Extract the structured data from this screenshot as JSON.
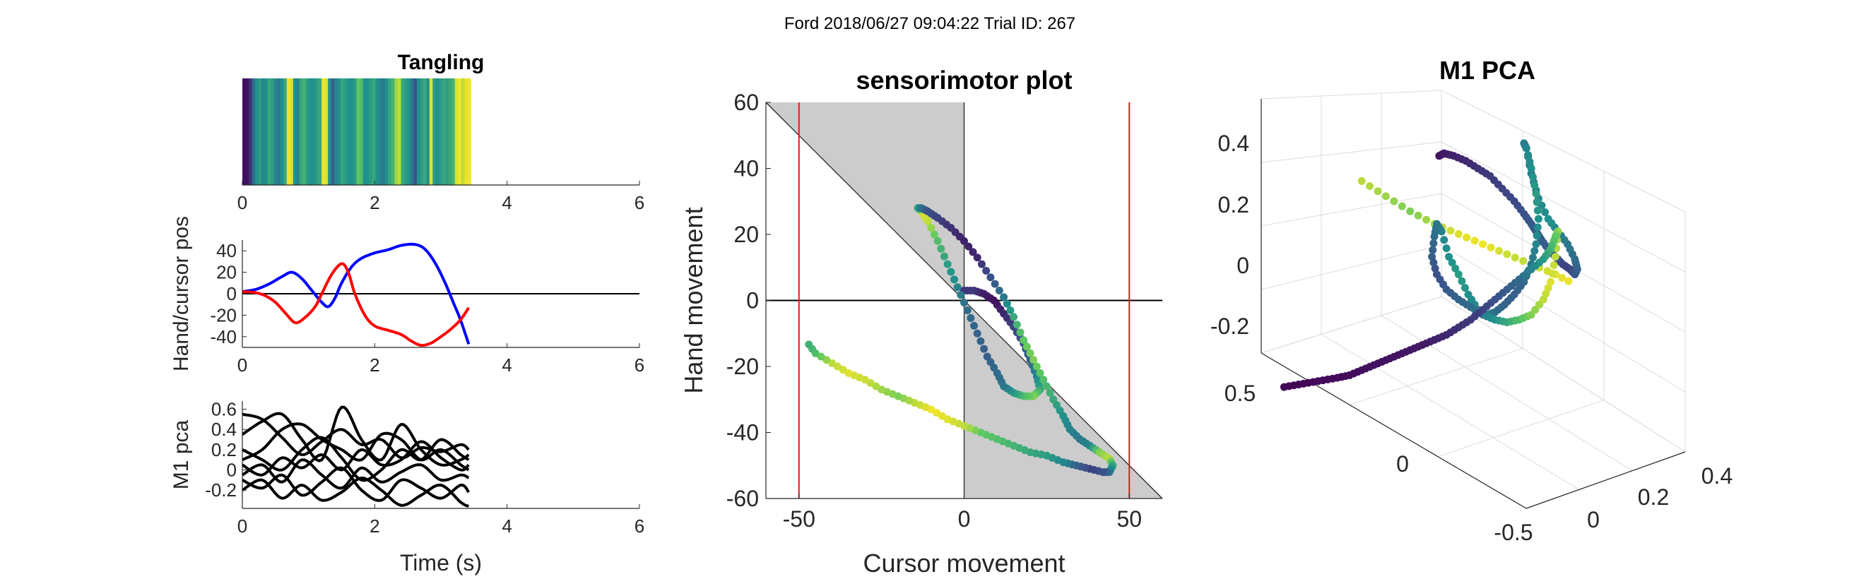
{
  "figure": {
    "suptitle": "Ford 2018/06/27 09:04:22 Trial ID: 267"
  },
  "colors": {
    "hand": "#0000ff",
    "cursor": "#ff0000",
    "pca": "#000000",
    "shade": "#cccccc",
    "boundary": "#e31a1c",
    "viridis": [
      "#440154",
      "#3b528b",
      "#21918c",
      "#5ec962",
      "#fde725"
    ]
  },
  "chart_data": [
    {
      "id": "tangling",
      "type": "heatmap",
      "title": "Tangling",
      "xlim": [
        0,
        6
      ],
      "xticks": [
        0,
        2,
        4,
        6
      ],
      "data_extent": [
        0,
        3.45
      ],
      "colormap": "viridis",
      "values": [
        0.05,
        0.05,
        0.15,
        0.35,
        0.5,
        0.55,
        0.45,
        0.5,
        0.6,
        0.55,
        0.45,
        0.4,
        0.5,
        0.6,
        0.98,
        0.95,
        0.5,
        0.45,
        0.6,
        0.65,
        0.55,
        0.5,
        0.5,
        0.55,
        0.6,
        0.98,
        0.95,
        0.5,
        0.3,
        0.45,
        0.5,
        0.6,
        0.55,
        0.5,
        0.5,
        0.55,
        0.75,
        0.7,
        0.5,
        0.5,
        0.55,
        0.6,
        0.5,
        0.45,
        0.4,
        0.5,
        0.6,
        0.65,
        0.85,
        0.9,
        0.6,
        0.55,
        0.5,
        0.4,
        0.25,
        0.5,
        0.55,
        0.6,
        0.5,
        0.95,
        0.55,
        0.5,
        0.55,
        0.6,
        0.55,
        0.6,
        0.65,
        0.95,
        0.98,
        0.9,
        0.96,
        0.98
      ]
    },
    {
      "id": "hand-cursor",
      "type": "line",
      "xlabel": "",
      "ylabel": "Hand/cursor pos",
      "xlim": [
        0,
        6
      ],
      "ylim": [
        -50,
        50
      ],
      "xticks": [
        0,
        2,
        4,
        6
      ],
      "yticks": [
        40,
        20,
        0,
        -20,
        -40
      ],
      "zero_line": true,
      "series": [
        {
          "key": "hand",
          "x": [
            0,
            0.2,
            0.4,
            0.6,
            0.75,
            0.9,
            1.05,
            1.2,
            1.3,
            1.4,
            1.5,
            1.65,
            1.8,
            2.0,
            2.2,
            2.4,
            2.6,
            2.75,
            2.9,
            3.05,
            3.2,
            3.3,
            3.42
          ],
          "y": [
            2,
            4,
            9,
            16,
            20,
            14,
            3,
            -8,
            -12,
            -4,
            10,
            25,
            33,
            38,
            41,
            45,
            46,
            42,
            30,
            12,
            -10,
            -25,
            -47
          ]
        },
        {
          "key": "cursor",
          "x": [
            0,
            0.2,
            0.35,
            0.5,
            0.65,
            0.8,
            0.95,
            1.1,
            1.2,
            1.35,
            1.5,
            1.6,
            1.7,
            1.85,
            2.0,
            2.2,
            2.4,
            2.55,
            2.7,
            2.85,
            3.0,
            3.15,
            3.3,
            3.42
          ],
          "y": [
            2,
            1,
            -2,
            -8,
            -18,
            -27,
            -22,
            -12,
            0,
            18,
            28,
            20,
            0,
            -20,
            -30,
            -34,
            -38,
            -44,
            -48,
            -46,
            -40,
            -33,
            -24,
            -13
          ]
        }
      ]
    },
    {
      "id": "m1-pca",
      "type": "line",
      "xlabel": "Time (s)",
      "ylabel": "M1 pca",
      "xlim": [
        0,
        6
      ],
      "ylim": [
        -0.38,
        0.68
      ],
      "xticks": [
        0,
        2,
        4,
        6
      ],
      "yticks": [
        0.6,
        0.4,
        0.2,
        0,
        -0.2
      ],
      "series": [
        {
          "key": "pc1",
          "x": [
            0,
            0.3,
            0.6,
            0.9,
            1.2,
            1.5,
            1.8,
            2.1,
            2.4,
            2.7,
            3.0,
            3.3,
            3.42
          ],
          "y": [
            0.55,
            0.5,
            0.32,
            0.15,
            0.28,
            0.4,
            0.25,
            0.3,
            0.12,
            0.22,
            0.18,
            0.25,
            0.2
          ]
        },
        {
          "key": "pc2",
          "x": [
            0,
            0.3,
            0.6,
            0.9,
            1.2,
            1.5,
            1.8,
            2.1,
            2.4,
            2.7,
            3.0,
            3.3,
            3.42
          ],
          "y": [
            0.35,
            0.48,
            0.55,
            0.3,
            0.1,
            0.62,
            0.3,
            0.1,
            0.45,
            0.2,
            0.05,
            0.1,
            0.15
          ]
        },
        {
          "key": "pc3",
          "x": [
            0,
            0.3,
            0.6,
            0.9,
            1.2,
            1.5,
            1.8,
            2.1,
            2.4,
            2.7,
            3.0,
            3.3,
            3.42
          ],
          "y": [
            0.1,
            0.2,
            0.4,
            0.45,
            0.3,
            0.2,
            0.1,
            0.35,
            0.3,
            0.1,
            0.2,
            0.05,
            0.0
          ]
        },
        {
          "key": "pc4",
          "x": [
            0,
            0.3,
            0.6,
            0.9,
            1.2,
            1.5,
            1.8,
            2.1,
            2.4,
            2.7,
            3.0,
            3.3,
            3.42
          ],
          "y": [
            0.05,
            -0.05,
            0.12,
            0.02,
            0.15,
            0.0,
            0.2,
            0.05,
            0.1,
            0.28,
            0.12,
            0.0,
            0.05
          ]
        },
        {
          "key": "pc5",
          "x": [
            0,
            0.3,
            0.6,
            0.9,
            1.2,
            1.5,
            1.8,
            2.1,
            2.4,
            2.7,
            3.0,
            3.3,
            3.42
          ],
          "y": [
            -0.05,
            0.05,
            -0.12,
            0.1,
            -0.05,
            -0.18,
            0.02,
            -0.12,
            -0.02,
            0.05,
            -0.1,
            -0.05,
            -0.08
          ]
        },
        {
          "key": "pc6",
          "x": [
            0,
            0.3,
            0.6,
            0.9,
            1.2,
            1.5,
            1.8,
            2.1,
            2.4,
            2.7,
            3.0,
            3.3,
            3.42
          ],
          "y": [
            -0.1,
            -0.18,
            -0.05,
            -0.25,
            -0.12,
            0.02,
            -0.2,
            -0.3,
            -0.1,
            -0.18,
            -0.28,
            -0.15,
            -0.22
          ]
        },
        {
          "key": "pc7",
          "x": [
            0,
            0.3,
            0.6,
            0.9,
            1.2,
            1.5,
            1.8,
            2.1,
            2.4,
            2.7,
            3.0,
            3.3,
            3.42
          ],
          "y": [
            -0.2,
            -0.1,
            -0.28,
            -0.15,
            -0.3,
            -0.22,
            -0.08,
            -0.2,
            -0.35,
            -0.25,
            -0.15,
            -0.32,
            -0.36
          ]
        },
        {
          "key": "pc8",
          "x": [
            0,
            0.3,
            0.6,
            0.9,
            1.2,
            1.5,
            1.8,
            2.1,
            2.4,
            2.7,
            3.0,
            3.3,
            3.42
          ],
          "y": [
            0.2,
            0.1,
            0.0,
            0.2,
            0.32,
            0.12,
            -0.1,
            0.0,
            0.2,
            0.1,
            0.3,
            0.15,
            0.1
          ]
        }
      ]
    },
    {
      "id": "sensorimotor",
      "type": "scatter",
      "title": "sensorimotor plot",
      "xlabel": "Cursor movement",
      "ylabel": "Hand movement",
      "xlim": [
        -60,
        60
      ],
      "ylim": [
        -60,
        60
      ],
      "xticks": [
        -50,
        0,
        50
      ],
      "yticks": [
        60,
        40,
        20,
        0,
        -20,
        -40,
        -60
      ],
      "boundaries_x": [
        -50,
        50
      ],
      "shaded_regions": "between y = -x and x = 0",
      "colormap": "viridis",
      "path": {
        "x": [
          0,
          3,
          6,
          9,
          12,
          15,
          18,
          20,
          22,
          23,
          21,
          18,
          15,
          12,
          10,
          7,
          4,
          1,
          -2,
          -5,
          -8,
          -11,
          -13,
          -14,
          -13,
          -11,
          -8,
          -4,
          0,
          4,
          8,
          12,
          15,
          18,
          21,
          24,
          27,
          30,
          32,
          35,
          38,
          41,
          44,
          45,
          44,
          42,
          38,
          34,
          30,
          25,
          20,
          15,
          10,
          5,
          0,
          -5,
          -10,
          -15,
          -20,
          -25,
          -30,
          -35,
          -40,
          -45,
          -48
        ],
        "y": [
          3,
          3,
          2,
          0,
          -4,
          -8,
          -13,
          -18,
          -23,
          -27,
          -29,
          -29,
          -28,
          -26,
          -22,
          -17,
          -10,
          -3,
          4,
          11,
          18,
          24,
          27,
          28,
          28,
          27,
          25,
          22,
          18,
          13,
          7,
          1,
          -5,
          -12,
          -18,
          -24,
          -30,
          -35,
          -39,
          -42,
          -44,
          -46,
          -48,
          -50,
          -52,
          -52,
          -51,
          -50,
          -49,
          -47,
          -46,
          -44,
          -42,
          -40,
          -38,
          -36,
          -33,
          -31,
          -29,
          -27,
          -24,
          -22,
          -19,
          -16,
          -12
        ],
        "c": [
          0.15,
          0.18,
          0.1,
          0.05,
          0.12,
          0.2,
          0.25,
          0.3,
          0.45,
          0.6,
          0.8,
          0.7,
          0.55,
          0.4,
          0.35,
          0.3,
          0.32,
          0.35,
          0.45,
          0.55,
          0.7,
          0.9,
          0.95,
          0.6,
          0.4,
          0.25,
          0.2,
          0.15,
          0.1,
          0.12,
          0.25,
          0.4,
          0.6,
          0.75,
          0.8,
          0.7,
          0.6,
          0.5,
          0.45,
          0.4,
          0.45,
          0.8,
          0.9,
          0.6,
          0.4,
          0.25,
          0.2,
          0.3,
          0.45,
          0.55,
          0.6,
          0.65,
          0.7,
          0.75,
          0.9,
          0.95,
          0.98,
          0.9,
          0.8,
          0.85,
          0.92,
          0.95,
          0.9,
          0.7,
          0.6
        ]
      }
    },
    {
      "id": "m1-pca-3d",
      "type": "scatter",
      "title": "M1 PCA",
      "yticks_left": [
        0.4,
        0.2,
        0,
        -0.2
      ],
      "xticks_front": [
        0.5,
        0
      ],
      "xticks_right": [
        0,
        0.2,
        0.4
      ],
      "xticks_right_extra": [
        -0.5
      ],
      "colormap": "viridis",
      "path": {
        "x": [
          -0.18,
          -0.16,
          -0.12,
          -0.07,
          -0.02,
          0.03,
          0.08,
          0.13,
          0.17,
          0.2,
          0.22,
          0.24,
          0.27,
          0.3,
          0.33,
          0.36,
          0.38,
          0.39,
          0.38,
          0.35,
          0.31,
          0.27,
          0.23,
          0.2,
          0.18,
          0.17,
          0.18,
          0.2,
          0.22,
          0.23,
          0.22,
          0.2,
          0.17,
          0.13,
          0.09,
          0.05,
          0.02,
          -0.02,
          -0.06,
          -0.1,
          -0.14,
          -0.17,
          -0.19,
          -0.2,
          -0.21,
          -0.19,
          -0.15,
          -0.1,
          -0.05,
          0.0,
          0.05,
          0.1,
          0.15,
          0.2,
          0.25,
          0.28,
          0.3,
          0.31,
          0.3,
          0.28,
          0.25,
          0.2,
          0.15,
          0.1,
          0.05,
          0.0,
          -0.05,
          -0.1,
          -0.15,
          -0.2,
          -0.25,
          -0.3,
          -0.35,
          -0.4,
          -0.45,
          -0.5,
          -0.55,
          -0.6,
          -0.66,
          -0.72,
          -0.78,
          -0.84
        ],
        "y": [
          0.35,
          0.36,
          0.35,
          0.33,
          0.3,
          0.27,
          0.22,
          0.17,
          0.12,
          0.08,
          0.05,
          0.02,
          -0.02,
          -0.05,
          -0.08,
          -0.1,
          -0.12,
          -0.1,
          -0.06,
          0.0,
          0.05,
          0.1,
          0.18,
          0.28,
          0.38,
          0.4,
          0.38,
          0.3,
          0.2,
          0.1,
          0.0,
          -0.08,
          -0.15,
          -0.2,
          -0.24,
          -0.27,
          -0.28,
          -0.26,
          -0.2,
          -0.12,
          -0.05,
          0.05,
          0.08,
          0.03,
          -0.05,
          -0.12,
          -0.18,
          -0.22,
          -0.25,
          -0.28,
          -0.3,
          -0.31,
          -0.3,
          -0.28,
          -0.22,
          -0.15,
          -0.05,
          0.05,
          0.03,
          -0.02,
          -0.06,
          -0.1,
          -0.14,
          -0.18,
          -0.22,
          -0.26,
          -0.3,
          -0.33,
          -0.36,
          -0.38,
          -0.4,
          -0.42,
          -0.44,
          -0.46,
          -0.48,
          -0.5,
          -0.52,
          -0.53,
          -0.54,
          -0.55,
          -0.56,
          -0.57
        ],
        "c": [
          0.05,
          0.08,
          0.1,
          0.12,
          0.15,
          0.18,
          0.2,
          0.22,
          0.25,
          0.28,
          0.3,
          0.3,
          0.28,
          0.25,
          0.22,
          0.2,
          0.25,
          0.3,
          0.35,
          0.4,
          0.45,
          0.5,
          0.45,
          0.4,
          0.38,
          0.4,
          0.45,
          0.5,
          0.55,
          0.5,
          0.45,
          0.4,
          0.35,
          0.3,
          0.32,
          0.35,
          0.4,
          0.45,
          0.5,
          0.55,
          0.5,
          0.45,
          0.4,
          0.35,
          0.3,
          0.25,
          0.28,
          0.32,
          0.35,
          0.4,
          0.5,
          0.6,
          0.7,
          0.8,
          0.9,
          0.95,
          0.9,
          0.85,
          0.75,
          0.65,
          0.55,
          0.45,
          0.35,
          0.3,
          0.25,
          0.2,
          0.18,
          0.15,
          0.12,
          0.1,
          0.08,
          0.07,
          0.06,
          0.05,
          0.05,
          0.04,
          0.04,
          0.03,
          0.03,
          0.02,
          0.02,
          0.02
        ]
      },
      "diagonal": {
        "x": [
          -0.5,
          -0.4,
          -0.3,
          -0.2,
          -0.1,
          0.0,
          0.1,
          0.2,
          0.3,
          0.38
        ],
        "y": [
          0.25,
          0.19,
          0.13,
          0.08,
          0.04,
          0.0,
          -0.04,
          -0.08,
          -0.12,
          -0.16
        ],
        "c": [
          0.9,
          0.85,
          0.8,
          0.88,
          0.95,
          0.98,
          0.92,
          0.9,
          0.95,
          0.98
        ]
      }
    }
  ]
}
